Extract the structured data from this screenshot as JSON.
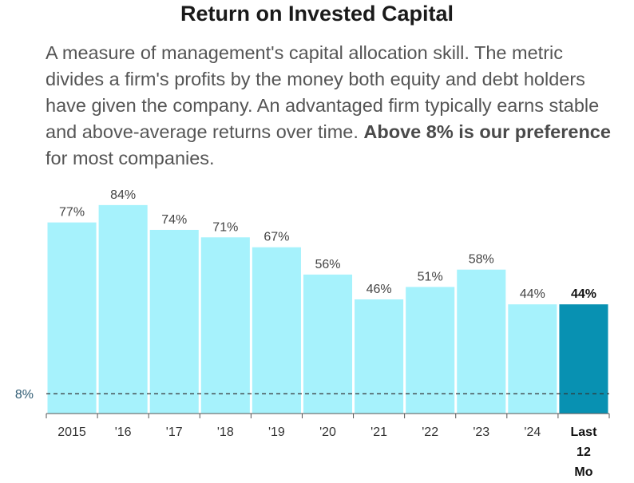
{
  "title": "Return on Invested Capital",
  "description": {
    "text1": "A measure of management's capital allocation skill. The metric divides a firm's profits by the money both equity and debt holders have given the company. An advantaged firm typically earns stable and above-average returns over time. ",
    "bold": "Above 8% is our preference",
    "text2": " for most companies."
  },
  "colors": {
    "bar": "#a6f2fc",
    "highlight_bar": "#0891b2",
    "reference_line": "#333333"
  },
  "chart_data": {
    "type": "bar",
    "categories": [
      "2015",
      "'16",
      "'17",
      "'18",
      "'19",
      "'20",
      "'21",
      "'22",
      "'23",
      "'24",
      "Last 12 Mo"
    ],
    "values": [
      77,
      84,
      74,
      71,
      67,
      56,
      46,
      51,
      58,
      44,
      44
    ],
    "value_labels": [
      "77%",
      "84%",
      "74%",
      "71%",
      "67%",
      "56%",
      "46%",
      "51%",
      "58%",
      "44%",
      "44%"
    ],
    "highlight_index": 10,
    "reference_line": {
      "value": 8,
      "label": "8%"
    },
    "ylim": [
      0,
      92
    ]
  }
}
